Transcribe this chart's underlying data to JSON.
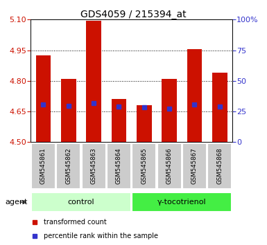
{
  "title": "GDS4059 / 215394_at",
  "samples": [
    "GSM545861",
    "GSM545862",
    "GSM545863",
    "GSM545864",
    "GSM545865",
    "GSM545866",
    "GSM545867",
    "GSM545868"
  ],
  "bar_heights": [
    4.925,
    4.81,
    5.095,
    4.71,
    4.68,
    4.81,
    4.955,
    4.84
  ],
  "blue_marker_y": [
    4.685,
    4.678,
    4.69,
    4.675,
    4.672,
    4.665,
    4.685,
    4.675
  ],
  "ymin": 4.5,
  "ymax": 5.1,
  "yticks_left": [
    4.5,
    4.65,
    4.8,
    4.95,
    5.1
  ],
  "yticks_right": [
    0,
    25,
    50,
    75,
    100
  ],
  "bar_color": "#cc1100",
  "blue_color": "#3333cc",
  "control_label": "control",
  "treatment_label": "γ-tocotrienol",
  "agent_label": "agent",
  "legend_red": "transformed count",
  "legend_blue": "percentile rank within the sample",
  "control_bg": "#ccffcc",
  "treatment_bg": "#44ee44",
  "sample_bg": "#cccccc",
  "plot_bg": "#ffffff",
  "title_fontsize": 10,
  "tick_fontsize": 8,
  "bar_width": 0.6
}
